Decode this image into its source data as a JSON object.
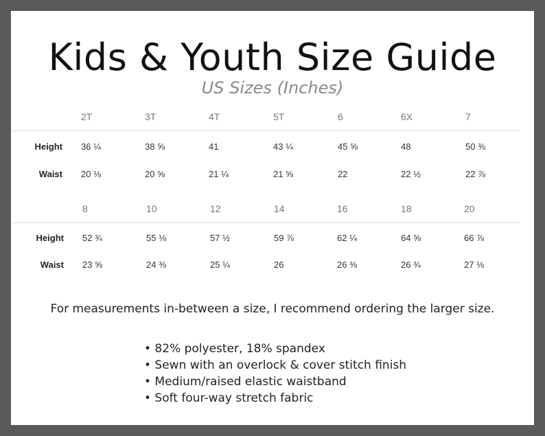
{
  "title": "Kids & Youth Size Guide",
  "subtitle": "US Sizes (Inches)",
  "table1": {
    "sizes": [
      "2T",
      "3T",
      "4T",
      "5T",
      "6",
      "6X",
      "7"
    ],
    "height_label": "Height",
    "height": [
      "36 ¼",
      "38 ⅝",
      "41",
      "43 ¼",
      "45 ⅝",
      "48",
      "50 ⅜"
    ],
    "waist_label": "Waist",
    "waist": [
      "20 ⅛",
      "20 ⅝",
      "21 ¼",
      "21 ⅝",
      "22",
      "22 ½",
      "22 ⅞"
    ]
  },
  "table2": {
    "sizes": [
      "8",
      "10",
      "12",
      "14",
      "16",
      "18",
      "20"
    ],
    "height_label": "Height",
    "height": [
      "52 ¾",
      "55 ⅛",
      "57 ½",
      "59 ⅞",
      "62 ¼",
      "64 ⅝",
      "66 ⅞"
    ],
    "waist_label": "Waist",
    "waist": [
      "23 ⅝",
      "24 ⅜",
      "25 ¼",
      "26",
      "26 ⅜",
      "26 ¾",
      "27 ⅛"
    ]
  },
  "note": "For measurements in-between a size, I recommend ordering the larger size.",
  "features": [
    "• 82% polyester, 18% spandex",
    "• Sewn with an overlock & cover stitch finish",
    "• Medium/raised elastic waistband",
    "• Soft four-way stretch fabric"
  ]
}
